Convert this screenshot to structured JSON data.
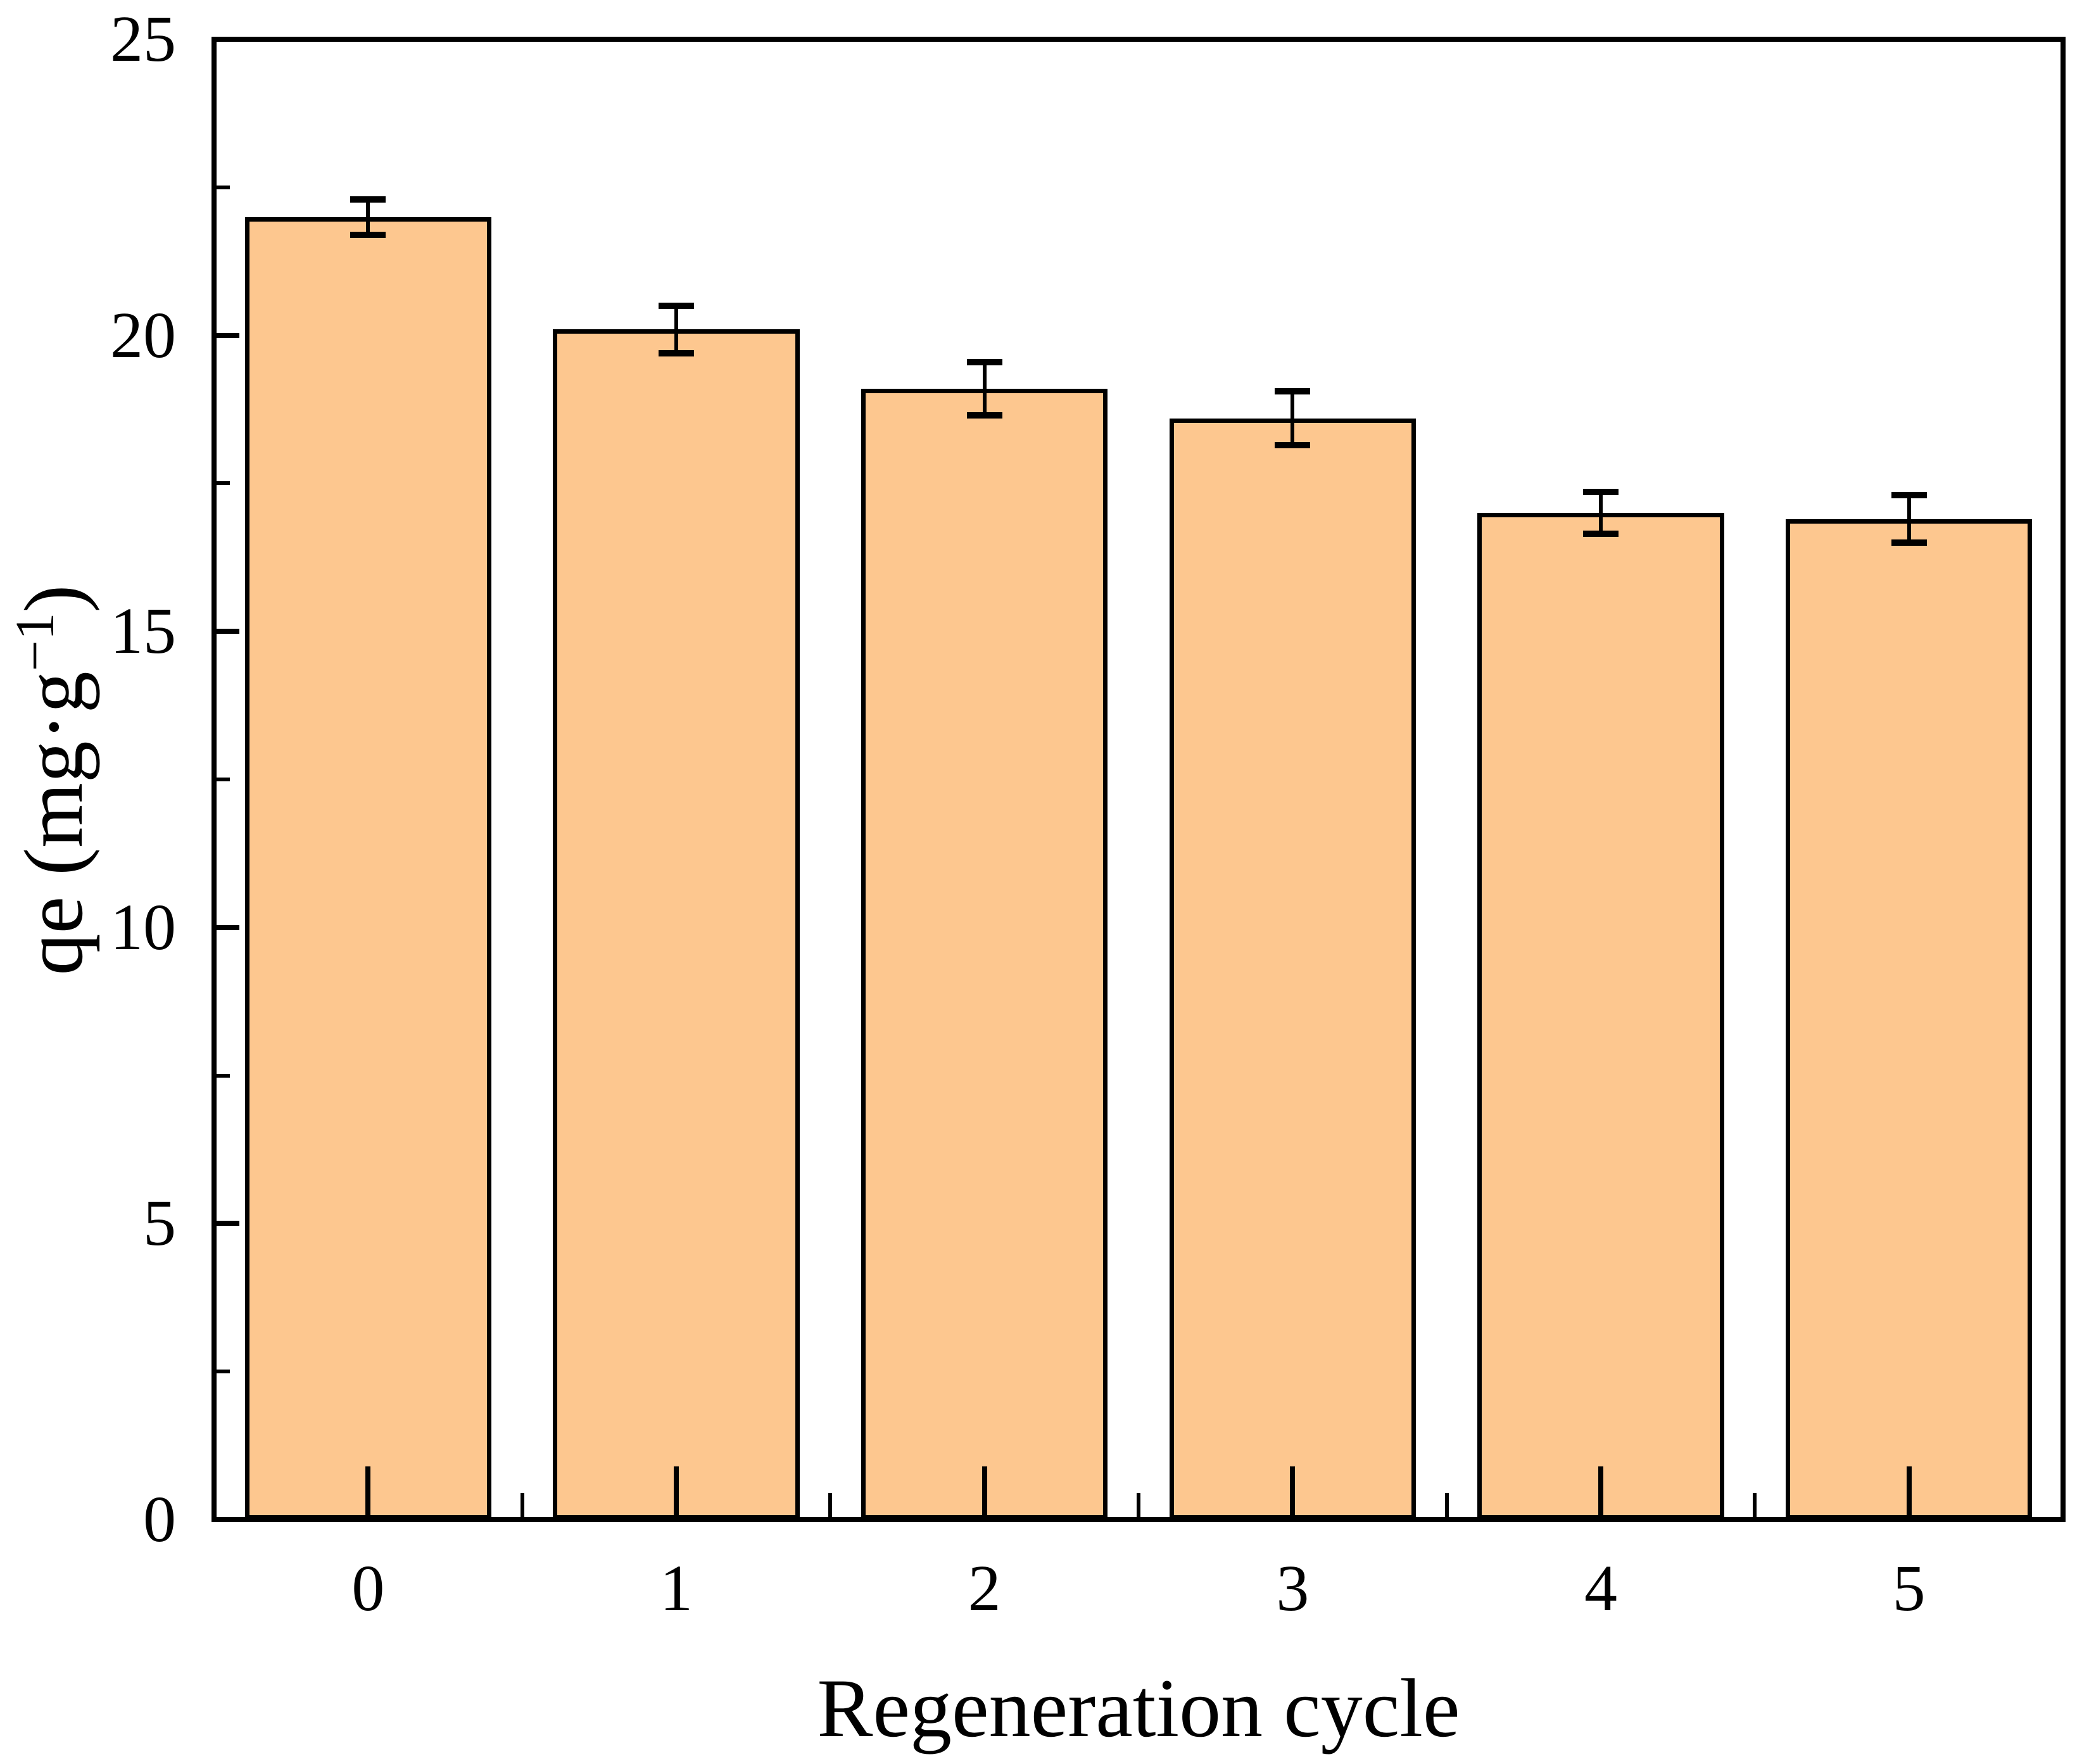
{
  "figure": {
    "background": "#ffffff",
    "xlabel": "Regeneration cycle",
    "ylabel_pre": "qe (mg·g",
    "ylabel_sup": "−1",
    "ylabel_post": ")"
  },
  "chart_data": {
    "type": "bar",
    "title": "",
    "xlabel": "Regeneration cycle",
    "ylabel": "qe (mg·g⁻¹)",
    "categories": [
      "0",
      "1",
      "2",
      "3",
      "4",
      "5"
    ],
    "values": [
      22.0,
      20.1,
      19.1,
      18.6,
      17.0,
      16.9
    ],
    "error_bars": [
      0.3,
      0.4,
      0.45,
      0.45,
      0.35,
      0.4
    ],
    "ylim": [
      0,
      25
    ],
    "yticks_major": [
      0,
      5,
      10,
      15,
      20,
      25
    ],
    "yticks_minor": [
      2.5,
      7.5,
      12.5,
      17.5,
      22.5
    ],
    "xticks_minor_between_categories": true,
    "bar_color": "#FDC78F",
    "bar_edge_color": "#000000",
    "axis_color": "#000000",
    "bar_width_frac": 0.8,
    "grid": false,
    "legend": null,
    "tick_direction": "in"
  }
}
